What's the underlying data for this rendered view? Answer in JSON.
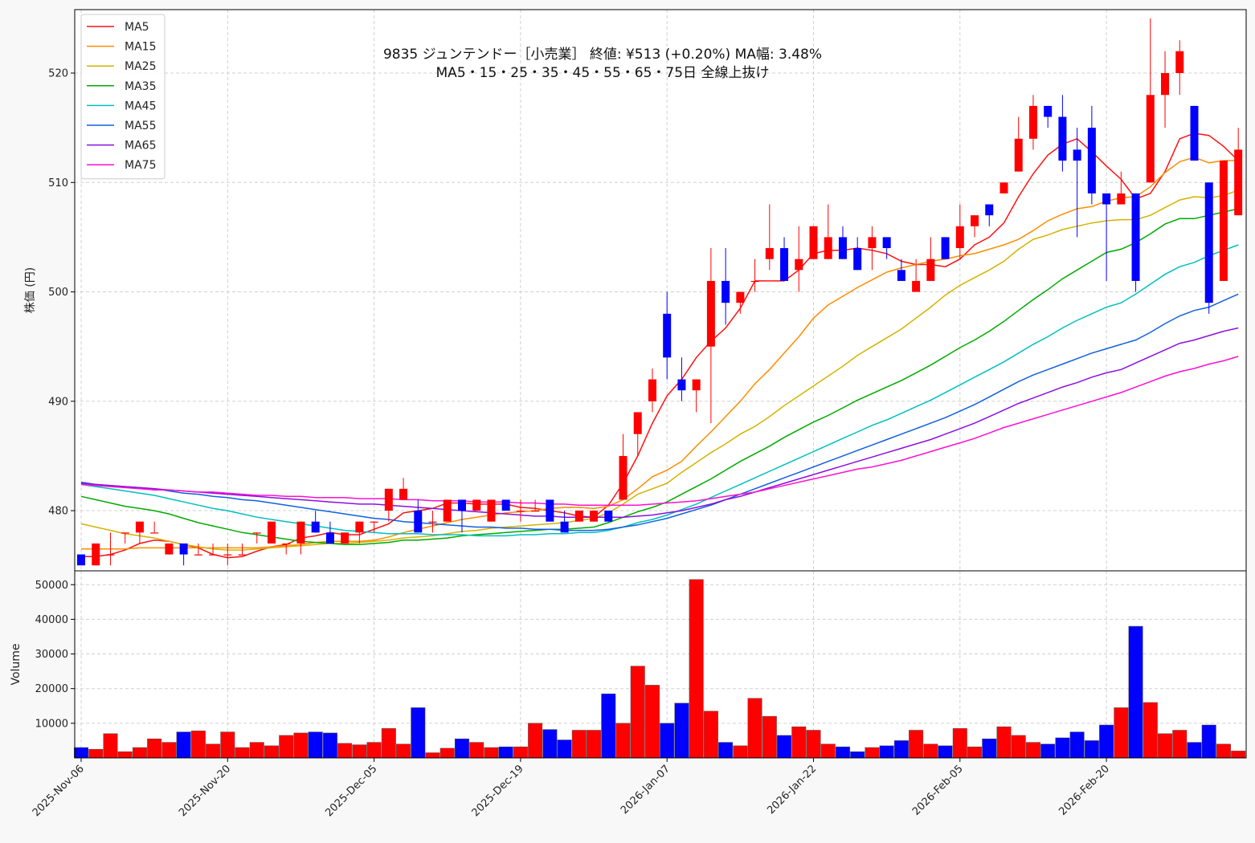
{
  "chart_data": {
    "type": "candlestick",
    "title": "9835  ジュンテンドー［小売業］ 終値: ¥513 (+0.20%)  MA幅: 3.48%",
    "subtitle": "MA5・15・25・35・45・55・65・75日 全線上抜け",
    "ylabel": "株価 (円)",
    "volume_ylabel": "Volume",
    "ylim": [
      474.5,
      525.8
    ],
    "volume_ylim": [
      0,
      54000
    ],
    "y_ticks": [
      480,
      490,
      500,
      510,
      520
    ],
    "volume_ticks": [
      10000,
      20000,
      30000,
      40000,
      50000
    ],
    "x_tick_labels": [
      {
        "index": 0,
        "label": "2025-Nov-06"
      },
      {
        "index": 10,
        "label": "2025-Nov-20"
      },
      {
        "index": 20,
        "label": "2025-Dec-05"
      },
      {
        "index": 30,
        "label": "2025-Dec-19"
      },
      {
        "index": 40,
        "label": "2026-Jan-07"
      },
      {
        "index": 50,
        "label": "2026-Jan-22"
      },
      {
        "index": 60,
        "label": "2026-Feb-05"
      },
      {
        "index": 70,
        "label": "2026-Feb-20"
      }
    ],
    "grid": true,
    "legend_position": "top-left",
    "up_color": "#ff0000",
    "down_color": "#0000ff",
    "ohlc": [
      [
        476,
        476,
        475,
        475
      ],
      [
        475,
        477,
        475,
        477
      ],
      [
        476,
        478,
        475,
        476
      ],
      [
        478,
        478,
        477,
        478
      ],
      [
        478,
        479,
        477,
        479
      ],
      [
        478,
        479,
        478,
        478
      ],
      [
        476,
        477,
        476,
        477
      ],
      [
        477,
        477,
        475,
        476
      ],
      [
        476,
        477,
        476,
        476
      ],
      [
        476,
        477,
        476,
        476
      ],
      [
        476,
        477,
        475,
        476
      ],
      [
        476,
        477,
        476,
        476
      ],
      [
        478,
        478,
        477,
        478
      ],
      [
        477,
        479,
        477,
        479
      ],
      [
        477,
        477,
        476,
        477
      ],
      [
        477,
        479,
        476,
        479
      ],
      [
        479,
        480,
        478,
        478
      ],
      [
        478,
        479,
        477,
        477
      ],
      [
        477,
        478,
        477,
        478
      ],
      [
        478,
        479,
        477,
        479
      ],
      [
        479,
        479,
        478,
        479
      ],
      [
        480,
        482,
        479,
        482
      ],
      [
        481,
        483,
        481,
        482
      ],
      [
        480,
        481,
        478,
        478
      ],
      [
        479,
        480,
        478,
        479
      ],
      [
        479,
        481,
        479,
        481
      ],
      [
        481,
        481,
        478,
        480
      ],
      [
        480,
        481,
        480,
        481
      ],
      [
        479,
        481,
        479,
        481
      ],
      [
        481,
        481,
        480,
        480
      ],
      [
        480,
        481,
        479,
        480
      ],
      [
        480,
        481,
        480,
        480
      ],
      [
        481,
        481,
        479,
        479
      ],
      [
        479,
        480,
        478,
        478
      ],
      [
        479,
        480,
        479,
        480
      ],
      [
        479,
        480,
        479,
        480
      ],
      [
        480,
        480,
        479,
        479
      ],
      [
        481,
        487,
        481,
        485
      ],
      [
        487,
        489,
        485,
        489
      ],
      [
        490,
        493,
        489,
        492
      ],
      [
        498,
        500,
        492,
        494
      ],
      [
        492,
        494,
        490,
        491
      ],
      [
        491,
        492,
        489,
        492
      ],
      [
        495,
        504,
        488,
        501
      ],
      [
        501,
        504,
        497,
        499
      ],
      [
        499,
        500,
        498,
        500
      ],
      [
        501,
        503,
        500,
        501
      ],
      [
        503,
        508,
        502,
        504
      ],
      [
        504,
        505,
        501,
        501
      ],
      [
        502,
        506,
        500,
        503
      ],
      [
        503,
        506,
        503,
        506
      ],
      [
        503,
        508,
        503,
        505
      ],
      [
        505,
        506,
        503,
        503
      ],
      [
        504,
        505,
        502,
        502
      ],
      [
        504,
        506,
        502,
        505
      ],
      [
        505,
        505,
        503,
        504
      ],
      [
        502,
        503,
        501,
        501
      ],
      [
        500,
        503,
        500,
        501
      ],
      [
        501,
        505,
        501,
        503
      ],
      [
        505,
        505,
        503,
        503
      ],
      [
        504,
        508,
        503,
        506
      ],
      [
        506,
        507,
        505,
        507
      ],
      [
        508,
        508,
        506,
        507
      ],
      [
        509,
        510,
        509,
        510
      ],
      [
        511,
        516,
        511,
        514
      ],
      [
        514,
        518,
        513,
        517
      ],
      [
        517,
        517,
        515,
        516
      ],
      [
        516,
        518,
        511,
        512
      ],
      [
        513,
        515,
        505,
        512
      ],
      [
        515,
        517,
        508,
        509
      ],
      [
        509,
        509,
        501,
        508
      ],
      [
        508,
        511,
        508,
        509
      ],
      [
        509,
        509,
        500,
        501
      ],
      [
        510,
        525,
        510,
        518
      ],
      [
        518,
        522,
        515,
        520
      ],
      [
        520,
        523,
        518,
        522
      ],
      [
        517,
        517,
        512,
        512
      ],
      [
        510,
        510,
        498,
        499
      ],
      [
        501,
        512,
        501,
        512
      ],
      [
        507,
        515,
        507,
        513
      ]
    ],
    "volume": [
      3000,
      2500,
      7000,
      1800,
      3000,
      5500,
      4500,
      7500,
      7800,
      4000,
      7500,
      3000,
      4500,
      3500,
      6500,
      7200,
      7500,
      7200,
      4200,
      3800,
      4500,
      8500,
      4000,
      14500,
      1500,
      2800,
      5500,
      4500,
      3000,
      3200,
      3200,
      10000,
      8200,
      5200,
      8000,
      8000,
      18500,
      10000,
      26500,
      21000,
      10000,
      15800,
      51500,
      13500,
      4500,
      3500,
      17200,
      12000,
      6500,
      9000,
      8000,
      4000,
      3200,
      1800,
      3000,
      3500,
      5000,
      8000,
      4000,
      3500,
      8500,
      3200,
      5500,
      9000,
      6500,
      4500,
      4000,
      5800,
      7500,
      5000,
      9500,
      14500,
      38000,
      16000,
      7000,
      8000,
      4500,
      9500,
      4000,
      2000
    ],
    "series": [
      {
        "name": "MA5",
        "color": "#ff1010",
        "values": [
          475.8,
          475.8,
          476.0,
          476.4,
          477.0,
          477.3,
          477.2,
          476.9,
          476.6,
          476.0,
          475.7,
          475.8,
          476.3,
          476.7,
          476.9,
          477.5,
          477.7,
          478.0,
          477.8,
          477.8,
          478.3,
          478.8,
          479.8,
          480.0,
          480.2,
          480.7,
          480.7,
          480.6,
          480.6,
          480.6,
          480.3,
          480.2,
          480.0,
          479.8,
          479.5,
          479.4,
          480.5,
          482.5,
          485.0,
          488.0,
          490.5,
          492.0,
          494.0,
          495.5,
          496.7,
          498.5,
          501.0,
          501.0,
          501.0,
          502.0,
          503.5,
          503.8,
          503.8,
          504.0,
          503.8,
          503.5,
          502.8,
          502.5,
          502.5,
          502.3,
          503.0,
          504.3,
          505.0,
          506.3,
          508.7,
          510.8,
          512.5,
          513.5,
          514.0,
          512.8,
          511.5,
          510.3,
          508.5,
          509.0,
          511.0,
          514.0,
          514.5,
          514.3,
          513.3,
          512.0
        ]
      },
      {
        "name": "MA15",
        "color": "#ff8c00",
        "values": [
          476.5,
          476.5,
          476.5,
          476.5,
          476.6,
          476.6,
          476.6,
          476.6,
          476.6,
          476.6,
          476.6,
          476.6,
          476.6,
          476.7,
          476.8,
          476.9,
          477.1,
          477.2,
          477.2,
          477.2,
          477.3,
          477.6,
          478.0,
          478.3,
          478.6,
          478.9,
          479.2,
          479.4,
          479.6,
          479.8,
          479.9,
          480.0,
          480.2,
          480.3,
          480.3,
          480.2,
          480.4,
          481.0,
          482.0,
          483.1,
          483.7,
          484.5,
          485.9,
          487.2,
          488.6,
          490.0,
          491.6,
          492.9,
          494.4,
          495.9,
          497.6,
          498.8,
          499.6,
          500.4,
          501.1,
          501.8,
          502.2,
          502.5,
          502.8,
          503.0,
          503.3,
          503.5,
          503.9,
          504.3,
          504.8,
          505.6,
          506.5,
          507.1,
          507.6,
          507.8,
          508.3,
          508.6,
          508.7,
          509.6,
          510.9,
          511.9,
          512.3,
          511.8,
          512.0,
          512.0
        ]
      },
      {
        "name": "MA25",
        "color": "#d4b200",
        "values": [
          478.8,
          478.5,
          478.2,
          477.9,
          477.7,
          477.5,
          477.2,
          476.9,
          476.7,
          476.5,
          476.4,
          476.4,
          476.5,
          476.6,
          476.7,
          476.8,
          476.9,
          477.0,
          477.0,
          477.1,
          477.2,
          477.3,
          477.5,
          477.6,
          477.7,
          477.9,
          478.1,
          478.2,
          478.4,
          478.5,
          478.6,
          478.7,
          478.8,
          478.9,
          479.1,
          479.3,
          479.8,
          480.6,
          481.5,
          482.0,
          482.5,
          483.5,
          484.4,
          485.3,
          486.1,
          487.0,
          487.7,
          488.6,
          489.6,
          490.5,
          491.4,
          492.3,
          493.2,
          494.2,
          495.0,
          495.8,
          496.6,
          497.6,
          498.6,
          499.7,
          500.6,
          501.3,
          502.0,
          502.8,
          503.9,
          504.8,
          505.2,
          505.7,
          506.0,
          506.3,
          506.5,
          506.6,
          506.6,
          507.0,
          507.7,
          508.4,
          508.7,
          508.6,
          508.8,
          509.3
        ]
      },
      {
        "name": "MA35",
        "color": "#00aa00",
        "values": [
          481.3,
          481.0,
          480.7,
          480.4,
          480.2,
          480.0,
          479.7,
          479.3,
          478.9,
          478.6,
          478.3,
          478.0,
          477.8,
          477.6,
          477.4,
          477.2,
          477.1,
          477.0,
          476.9,
          476.9,
          477.0,
          477.1,
          477.3,
          477.3,
          477.4,
          477.5,
          477.7,
          477.8,
          477.9,
          478.0,
          478.1,
          478.2,
          478.3,
          478.3,
          478.4,
          478.5,
          478.9,
          479.4,
          479.9,
          480.3,
          480.8,
          481.5,
          482.2,
          482.9,
          483.7,
          484.5,
          485.2,
          485.9,
          486.7,
          487.4,
          488.1,
          488.7,
          489.4,
          490.1,
          490.7,
          491.3,
          491.9,
          492.6,
          493.3,
          494.1,
          494.9,
          495.6,
          496.4,
          497.3,
          498.3,
          499.3,
          500.2,
          501.2,
          502.0,
          502.8,
          503.6,
          503.9,
          504.5,
          505.3,
          506.2,
          506.7,
          506.7,
          507.0,
          507.3,
          507.6
        ]
      },
      {
        "name": "MA45",
        "color": "#00bfbf",
        "values": [
          482.4,
          482.2,
          482.0,
          481.8,
          481.6,
          481.4,
          481.1,
          480.8,
          480.5,
          480.2,
          480.0,
          479.7,
          479.4,
          479.2,
          479.0,
          478.8,
          478.6,
          478.4,
          478.2,
          478.1,
          478.0,
          477.9,
          477.9,
          477.9,
          477.8,
          477.8,
          477.8,
          477.7,
          477.7,
          477.7,
          477.8,
          477.8,
          477.9,
          477.9,
          478.0,
          478.0,
          478.2,
          478.5,
          478.9,
          479.2,
          479.6,
          480.1,
          480.6,
          481.2,
          481.8,
          482.4,
          483.0,
          483.6,
          484.2,
          484.8,
          485.4,
          486.0,
          486.6,
          487.2,
          487.8,
          488.3,
          488.9,
          489.5,
          490.1,
          490.8,
          491.5,
          492.2,
          492.9,
          493.6,
          494.4,
          495.2,
          495.9,
          496.7,
          497.4,
          498.0,
          498.6,
          499.0,
          499.8,
          500.7,
          501.6,
          502.3,
          502.7,
          503.3,
          503.8,
          504.3
        ]
      },
      {
        "name": "MA55",
        "color": "#1060e0",
        "values": [
          482.6,
          482.4,
          482.3,
          482.2,
          482.1,
          482.0,
          481.8,
          481.6,
          481.5,
          481.3,
          481.2,
          481.0,
          480.9,
          480.7,
          480.5,
          480.3,
          480.1,
          479.9,
          479.7,
          479.5,
          479.3,
          479.2,
          479.0,
          478.9,
          478.8,
          478.7,
          478.6,
          478.5,
          478.5,
          478.4,
          478.4,
          478.3,
          478.3,
          478.2,
          478.2,
          478.2,
          478.3,
          478.5,
          478.7,
          479.0,
          479.3,
          479.7,
          480.1,
          480.5,
          481.0,
          481.5,
          482.0,
          482.5,
          483.0,
          483.5,
          484.0,
          484.5,
          485.0,
          485.5,
          486.0,
          486.5,
          487.0,
          487.5,
          488.0,
          488.5,
          489.1,
          489.7,
          490.4,
          491.1,
          491.8,
          492.4,
          492.9,
          493.4,
          493.9,
          494.4,
          494.8,
          495.2,
          495.6,
          496.3,
          497.1,
          497.8,
          498.3,
          498.6,
          499.2,
          499.8
        ]
      },
      {
        "name": "MA65",
        "color": "#8a10e0",
        "values": [
          482.5,
          482.4,
          482.3,
          482.2,
          482.1,
          482.0,
          481.9,
          481.8,
          481.7,
          481.6,
          481.5,
          481.4,
          481.3,
          481.2,
          481.1,
          481.0,
          480.9,
          480.8,
          480.7,
          480.6,
          480.6,
          480.5,
          480.4,
          480.3,
          480.2,
          480.1,
          480.0,
          479.9,
          479.8,
          479.7,
          479.6,
          479.5,
          479.5,
          479.4,
          479.4,
          479.4,
          479.4,
          479.4,
          479.5,
          479.6,
          479.8,
          480.0,
          480.3,
          480.6,
          481.0,
          481.3,
          481.7,
          482.1,
          482.5,
          482.9,
          483.3,
          483.7,
          484.1,
          484.5,
          484.9,
          485.3,
          485.7,
          486.1,
          486.5,
          487.0,
          487.5,
          488.0,
          488.6,
          489.2,
          489.8,
          490.3,
          490.8,
          491.3,
          491.7,
          492.2,
          492.6,
          492.9,
          493.5,
          494.1,
          494.7,
          495.3,
          495.6,
          496.0,
          496.4,
          496.7
        ]
      },
      {
        "name": "MA75",
        "color": "#ff10d0",
        "values": [
          482.4,
          482.3,
          482.2,
          482.1,
          482.0,
          481.9,
          481.9,
          481.8,
          481.7,
          481.7,
          481.6,
          481.5,
          481.4,
          481.4,
          481.3,
          481.3,
          481.2,
          481.2,
          481.2,
          481.1,
          481.1,
          481.1,
          481.0,
          481.0,
          480.9,
          480.9,
          480.9,
          480.8,
          480.8,
          480.8,
          480.7,
          480.7,
          480.6,
          480.6,
          480.5,
          480.5,
          480.5,
          480.5,
          480.5,
          480.6,
          480.7,
          480.8,
          480.9,
          481.1,
          481.3,
          481.5,
          481.7,
          482.0,
          482.3,
          482.6,
          482.9,
          483.2,
          483.5,
          483.8,
          484.0,
          484.3,
          484.6,
          485.0,
          485.4,
          485.8,
          486.2,
          486.6,
          487.1,
          487.6,
          488.0,
          488.4,
          488.8,
          489.2,
          489.6,
          490.0,
          490.4,
          490.8,
          491.3,
          491.8,
          492.3,
          492.7,
          493.0,
          493.4,
          493.7,
          494.1
        ]
      }
    ]
  }
}
